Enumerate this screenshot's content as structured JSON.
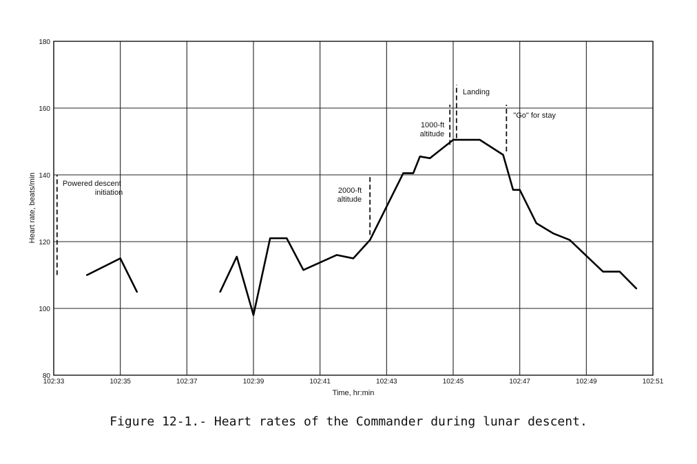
{
  "caption": "Figure 12-1.- Heart rates of the Commander during lunar descent.",
  "chart_data": {
    "type": "line",
    "title": "",
    "xlabel": "Time, hr:min",
    "ylabel": "Heart rate, beats/min",
    "xlim": [
      0,
      18
    ],
    "ylim": [
      80,
      180
    ],
    "x_ticks": [
      {
        "x": 0,
        "label": "102:33"
      },
      {
        "x": 2,
        "label": "102:35"
      },
      {
        "x": 4,
        "label": "102:37"
      },
      {
        "x": 6,
        "label": "102:39"
      },
      {
        "x": 8,
        "label": "102:41"
      },
      {
        "x": 10,
        "label": "102:43"
      },
      {
        "x": 12,
        "label": "102:45"
      },
      {
        "x": 14,
        "label": "102:47"
      },
      {
        "x": 16,
        "label": "102:49"
      },
      {
        "x": 18,
        "label": "102:51"
      }
    ],
    "y_ticks": [
      80,
      100,
      120,
      140,
      160,
      180
    ],
    "grid": true,
    "segments": [
      [
        [
          1.0,
          110
        ],
        [
          2.0,
          115
        ],
        [
          2.5,
          105
        ]
      ],
      [
        [
          5.0,
          105
        ],
        [
          5.5,
          115.5
        ],
        [
          6.0,
          98
        ],
        [
          6.5,
          121
        ],
        [
          7.0,
          121
        ],
        [
          7.5,
          111.5
        ],
        [
          8.5,
          116
        ],
        [
          9.0,
          115
        ],
        [
          9.5,
          120.5
        ],
        [
          10.5,
          140.5
        ],
        [
          10.8,
          140.5
        ],
        [
          11.0,
          145.5
        ],
        [
          11.3,
          145
        ],
        [
          12.0,
          150.5
        ],
        [
          12.8,
          150.5
        ],
        [
          13.5,
          146
        ],
        [
          13.8,
          135.5
        ],
        [
          14.0,
          135.5
        ],
        [
          14.5,
          125.5
        ],
        [
          15.0,
          122.5
        ],
        [
          15.5,
          120.5
        ],
        [
          16.5,
          111
        ],
        [
          17.0,
          111
        ],
        [
          17.5,
          106
        ]
      ]
    ],
    "events": [
      {
        "x": 0.1,
        "y_from": 110,
        "y_to": 140,
        "lines": [
          "Powered descent",
          "initiation"
        ]
      },
      {
        "x": 9.5,
        "y_from": 122,
        "y_to": 140,
        "lines": [
          "2000-ft",
          "altitude"
        ]
      },
      {
        "x": 11.9,
        "y_from": 149,
        "y_to": 161,
        "lines": [
          "1000-ft",
          "altitude"
        ]
      },
      {
        "x": 12.1,
        "y_from": 151,
        "y_to": 167,
        "lines": [
          "Landing"
        ]
      },
      {
        "x": 13.6,
        "y_from": 147,
        "y_to": 161,
        "lines": [
          "\"Go\" for stay"
        ]
      }
    ]
  }
}
